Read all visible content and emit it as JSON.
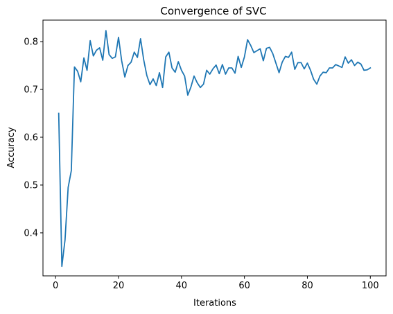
{
  "chart_data": {
    "type": "line",
    "title": "Convergence of SVC",
    "xlabel": "Iterations",
    "ylabel": "Accuracy",
    "xlim": [
      -4,
      105
    ],
    "ylim": [
      0.31,
      0.845
    ],
    "xticks": [
      0,
      20,
      40,
      60,
      80,
      100
    ],
    "yticks": [
      0.4,
      0.5,
      0.6,
      0.7,
      0.8
    ],
    "xtick_labels": [
      "0",
      "20",
      "40",
      "60",
      "80",
      "100"
    ],
    "ytick_labels": [
      "0.4",
      "0.5",
      "0.6",
      "0.7",
      "0.8"
    ],
    "grid": false,
    "legend": false,
    "line_color": "#1f77b4",
    "series": [
      {
        "x": [
          1,
          2,
          3,
          4,
          5,
          6,
          7,
          8,
          9,
          10,
          11,
          12,
          13,
          14,
          15,
          16,
          17,
          18,
          19,
          20,
          21,
          22,
          23,
          24,
          25,
          26,
          27,
          28,
          29,
          30,
          31,
          32,
          33,
          34,
          35,
          36,
          37,
          38,
          39,
          40,
          41,
          42,
          43,
          44,
          45,
          46,
          47,
          48,
          49,
          50,
          51,
          52,
          53,
          54,
          55,
          56,
          57,
          58,
          59,
          60,
          61,
          62,
          63,
          64,
          65,
          66,
          67,
          68,
          69,
          70,
          71,
          72,
          73,
          74,
          75,
          76,
          77,
          78,
          79,
          80,
          81,
          82,
          83,
          84,
          85,
          86,
          87,
          88,
          89,
          90,
          91,
          92,
          93,
          94,
          95,
          96,
          97,
          98,
          99,
          100
        ],
        "values": [
          0.65,
          0.33,
          0.385,
          0.495,
          0.53,
          0.747,
          0.738,
          0.716,
          0.766,
          0.74,
          0.802,
          0.77,
          0.782,
          0.787,
          0.761,
          0.823,
          0.773,
          0.765,
          0.768,
          0.809,
          0.76,
          0.726,
          0.75,
          0.757,
          0.778,
          0.767,
          0.806,
          0.762,
          0.729,
          0.71,
          0.722,
          0.708,
          0.735,
          0.704,
          0.768,
          0.778,
          0.745,
          0.736,
          0.758,
          0.74,
          0.728,
          0.688,
          0.705,
          0.728,
          0.714,
          0.704,
          0.711,
          0.74,
          0.732,
          0.743,
          0.751,
          0.733,
          0.752,
          0.732,
          0.745,
          0.745,
          0.734,
          0.769,
          0.746,
          0.768,
          0.804,
          0.792,
          0.777,
          0.781,
          0.785,
          0.76,
          0.786,
          0.788,
          0.775,
          0.755,
          0.735,
          0.757,
          0.769,
          0.767,
          0.778,
          0.742,
          0.756,
          0.756,
          0.743,
          0.755,
          0.74,
          0.721,
          0.711,
          0.728,
          0.736,
          0.735,
          0.745,
          0.745,
          0.752,
          0.749,
          0.746,
          0.768,
          0.755,
          0.762,
          0.75,
          0.757,
          0.753,
          0.74,
          0.741,
          0.745
        ]
      }
    ]
  }
}
